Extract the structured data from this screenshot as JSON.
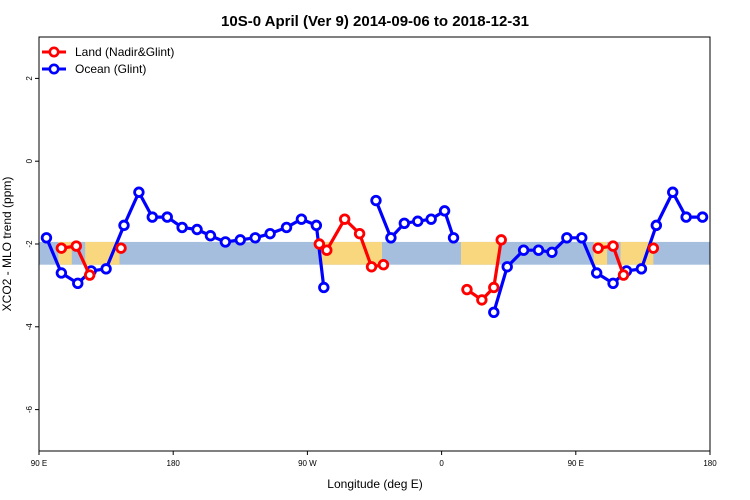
{
  "chart_data": {
    "type": "line",
    "title": "10S-0 April (Ver 9)   2014-09-06 to 2018-12-31",
    "xlabel": "Longitude (deg E)",
    "ylabel": "XCO2 - MLO trend (ppm)",
    "xlim": [
      90,
      540
    ],
    "ylim": [
      -7,
      3
    ],
    "grid": false,
    "legend_position": "top-left",
    "x_ticks": [
      {
        "value": 90,
        "label": "90 E"
      },
      {
        "value": 180,
        "label": "180"
      },
      {
        "value": 270,
        "label": "90 W"
      },
      {
        "value": 360,
        "label": "0"
      },
      {
        "value": 450,
        "label": "90 E"
      },
      {
        "value": 540,
        "label": "180"
      }
    ],
    "y_ticks": [
      {
        "value": 2,
        "label": "2"
      },
      {
        "value": 0,
        "label": "0"
      },
      {
        "value": -2,
        "label": "-2"
      },
      {
        "value": -4,
        "label": "-4"
      },
      {
        "value": -6,
        "label": "-6"
      }
    ],
    "band": {
      "y_min": -2.5,
      "y_max": -1.95,
      "ocean_color": "#a6bedd",
      "land_color": "#f9d77e"
    },
    "land_band_segments": [
      [
        103,
        112
      ],
      [
        121,
        144
      ],
      [
        279,
        320
      ],
      [
        373,
        398
      ],
      [
        462,
        471
      ],
      [
        480,
        502
      ]
    ],
    "series": [
      {
        "name": "Land (Nadir&Glint)",
        "color": "#ff0000",
        "segments": [
          [
            [
              105,
              -2.1
            ],
            [
              115,
              -2.05
            ],
            [
              124,
              -2.75
            ]
          ],
          [
            [
              145,
              -2.1
            ]
          ],
          [
            [
              278,
              -2.0
            ],
            [
              283,
              -2.15
            ],
            [
              295,
              -1.4
            ],
            [
              305,
              -1.75
            ],
            [
              313,
              -2.55
            ],
            [
              321,
              -2.5
            ]
          ],
          [
            [
              377,
              -3.1
            ],
            [
              387,
              -3.35
            ],
            [
              395,
              -3.05
            ],
            [
              400,
              -1.9
            ]
          ],
          [
            [
              465,
              -2.1
            ],
            [
              475,
              -2.05
            ],
            [
              482,
              -2.75
            ]
          ],
          [
            [
              502,
              -2.1
            ]
          ]
        ]
      },
      {
        "name": "Ocean (Glint)",
        "color": "#0000ff",
        "segments": [
          [
            [
              95,
              -1.85
            ],
            [
              105,
              -2.7
            ],
            [
              116,
              -2.95
            ],
            [
              125,
              -2.65
            ],
            [
              135,
              -2.6
            ],
            [
              147,
              -1.55
            ],
            [
              157,
              -0.75
            ],
            [
              166,
              -1.35
            ],
            [
              176,
              -1.35
            ],
            [
              186,
              -1.6
            ],
            [
              196,
              -1.65
            ],
            [
              205,
              -1.8
            ],
            [
              215,
              -1.95
            ],
            [
              225,
              -1.9
            ],
            [
              235,
              -1.85
            ],
            [
              245,
              -1.75
            ],
            [
              256,
              -1.6
            ],
            [
              266,
              -1.4
            ],
            [
              276,
              -1.55
            ],
            [
              281,
              -3.05
            ]
          ],
          [
            [
              316,
              -0.95
            ],
            [
              326,
              -1.85
            ],
            [
              335,
              -1.5
            ],
            [
              344,
              -1.45
            ],
            [
              353,
              -1.4
            ],
            [
              362,
              -1.2
            ],
            [
              368,
              -1.85
            ]
          ],
          [
            [
              395,
              -3.65
            ],
            [
              404,
              -2.55
            ],
            [
              415,
              -2.15
            ],
            [
              425,
              -2.15
            ],
            [
              434,
              -2.2
            ],
            [
              444,
              -1.85
            ],
            [
              454,
              -1.85
            ],
            [
              464,
              -2.7
            ],
            [
              475,
              -2.95
            ],
            [
              484,
              -2.65
            ],
            [
              494,
              -2.6
            ],
            [
              504,
              -1.55
            ],
            [
              515,
              -0.75
            ],
            [
              524,
              -1.35
            ],
            [
              535,
              -1.35
            ]
          ]
        ]
      }
    ]
  }
}
